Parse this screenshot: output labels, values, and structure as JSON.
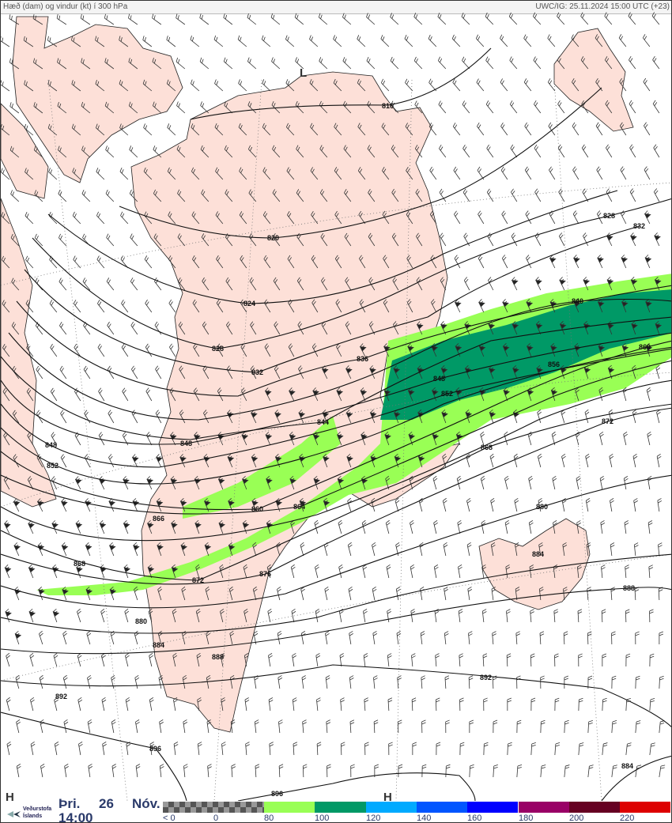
{
  "header": {
    "title": "Hæð (dam) og vindur (kt) í 300 hPa",
    "run": "UWC/IG: 25.11.2024 15:00 UTC (+23)"
  },
  "map": {
    "land_color": "#fde0d8",
    "wind_80_100_color": "#99ff55",
    "wind_100_120_color": "#009966",
    "pressure_centers": {
      "low": "L",
      "high_left": "H",
      "high_bottom": "H"
    },
    "contour_labels": [
      "816",
      "820",
      "824",
      "828",
      "828",
      "832",
      "832",
      "836",
      "840",
      "844",
      "848",
      "848",
      "848",
      "852",
      "852",
      "856",
      "860",
      "860",
      "864",
      "866",
      "868",
      "868",
      "872",
      "872",
      "876",
      "880",
      "880",
      "884",
      "884",
      "884",
      "888",
      "888",
      "892",
      "892",
      "896",
      "896"
    ]
  },
  "footer": {
    "logo_text": [
      "Veðurstofa",
      "Íslands"
    ],
    "day": "Þri.",
    "date": "26",
    "month": "Nóv.",
    "time": "14:00",
    "legend": {
      "ticks": [
        "< 0",
        "0",
        "80",
        "100",
        "120",
        "140",
        "160",
        "180",
        "200",
        "220"
      ],
      "colors": [
        "#99ff55",
        "#009966",
        "#00aaff",
        "#0055ff",
        "#0000ff",
        "#990066",
        "#660022",
        "#dd0000"
      ]
    }
  }
}
